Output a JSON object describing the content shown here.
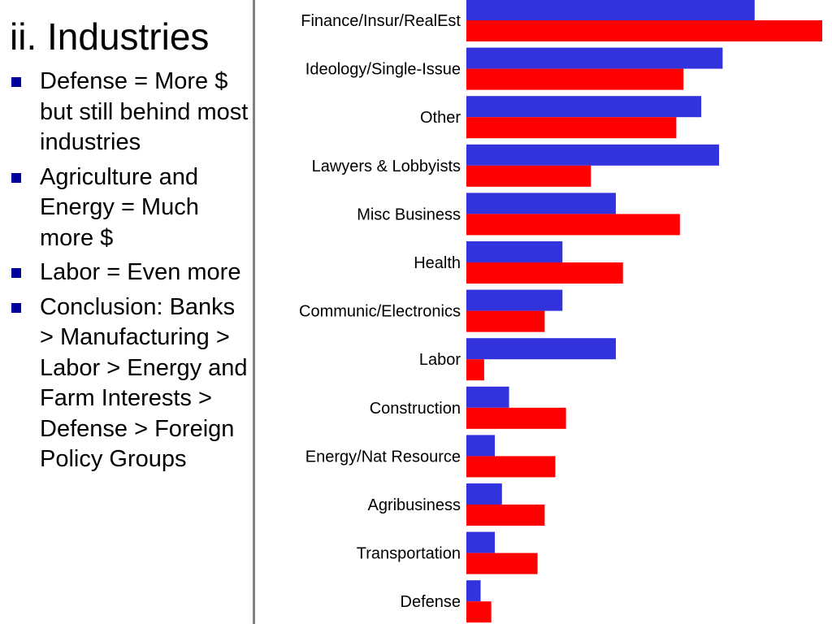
{
  "slide": {
    "title": "ii. Industries",
    "bullets": [
      "Defense = More $ but still behind most industries",
      "Agriculture and Energy = Much more $",
      "Labor = Even more",
      "Conclusion: Banks > Manufacturing > Labor > Energy and Farm Interests > Defense > Foreign Policy Groups"
    ]
  },
  "colors": {
    "blue_series": "#3333dd",
    "red_series": "#ff0000",
    "divider": "#808080",
    "bullet": "#00009a"
  },
  "chart_data": {
    "type": "bar",
    "orientation": "horizontal",
    "title": "",
    "xlabel": "",
    "ylabel": "",
    "xlim": [
      0,
      100
    ],
    "grid": false,
    "legend": "none",
    "categories": [
      "Finance/Insur/RealEst",
      "Ideology/Single-Issue",
      "Other",
      "Lawyers & Lobbyists",
      "Misc Business",
      "Health",
      "Communic/Electronics",
      "Labor",
      "Construction",
      "Energy/Nat Resource",
      "Agribusiness",
      "Transportation",
      "Defense"
    ],
    "series": [
      {
        "color": "#3333dd",
        "values": [
          81,
          72,
          66,
          71,
          42,
          27,
          27,
          42,
          12,
          8,
          10,
          8,
          4
        ]
      },
      {
        "color": "#ff0000",
        "values": [
          100,
          61,
          59,
          35,
          60,
          44,
          22,
          5,
          28,
          25,
          22,
          20,
          7
        ]
      }
    ]
  }
}
